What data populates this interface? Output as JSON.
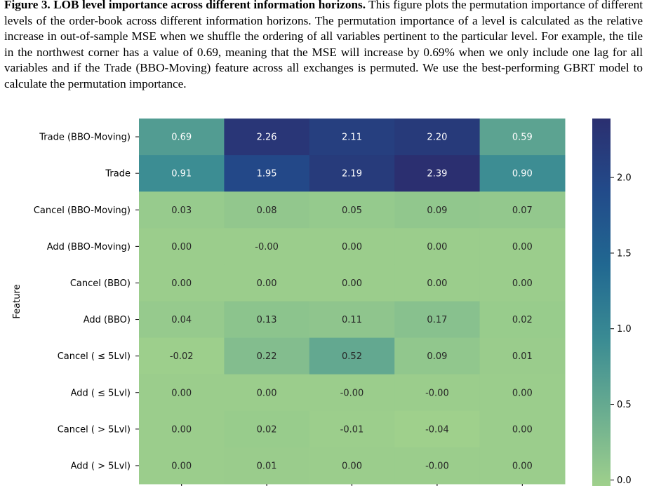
{
  "caption": {
    "label": "Figure 3.",
    "title": "LOB level importance across different information horizons.",
    "text": "This figure plots the permutation importance of different levels of the order-book across different information horizons. The permutation importance of a level is calculated as the relative increase in out-of-sample MSE when we shuffle the ordering of all variables pertinent to the particular level. For example, the tile in the northwest corner has a value of 0.69, meaning that the MSE will increase by 0.69% when we only include one lag for all variables and if the Trade (BBO-Moving) feature across all exchanges is permuted. We use the best-performing GBRT model to calculate the permutation importance."
  },
  "chart_data": {
    "type": "heatmap",
    "ylabel": "Feature",
    "xlabel": "",
    "rows": [
      "Trade (BBO-Moving)",
      "Trade",
      "Cancel (BBO-Moving)",
      "Add (BBO-Moving)",
      "Cancel (BBO)",
      "Add (BBO)",
      "Cancel ( ≤ 5Lvl)",
      "Add ( ≤ 5Lvl)",
      "Cancel ( > 5Lvl)",
      "Add ( > 5Lvl)"
    ],
    "values": [
      [
        "0.69",
        "2.26",
        "2.11",
        "2.20",
        "0.59"
      ],
      [
        "0.91",
        "1.95",
        "2.19",
        "2.39",
        "0.90"
      ],
      [
        "0.03",
        "0.08",
        "0.05",
        "0.09",
        "0.07"
      ],
      [
        "0.00",
        "-0.00",
        "0.00",
        "0.00",
        "0.00"
      ],
      [
        "0.00",
        "0.00",
        "0.00",
        "0.00",
        "0.00"
      ],
      [
        "0.04",
        "0.13",
        "0.11",
        "0.17",
        "0.02"
      ],
      [
        "-0.02",
        "0.22",
        "0.52",
        "0.09",
        "0.01"
      ],
      [
        "0.00",
        "0.00",
        "-0.00",
        "-0.00",
        "0.00"
      ],
      [
        "0.00",
        "0.02",
        "-0.01",
        "-0.04",
        "0.00"
      ],
      [
        "0.00",
        "0.01",
        "0.00",
        "-0.00",
        "0.00"
      ]
    ],
    "colorbar": {
      "ticks": [
        "0.0",
        "0.5",
        "1.0",
        "1.5",
        "2.0"
      ],
      "vmin": -0.04,
      "vmax": 2.39,
      "colormap": "crest",
      "colors": [
        "#9fd08c",
        "#6aad90",
        "#3a8b93",
        "#216891",
        "#224b8a",
        "#2b2f70"
      ]
    }
  }
}
